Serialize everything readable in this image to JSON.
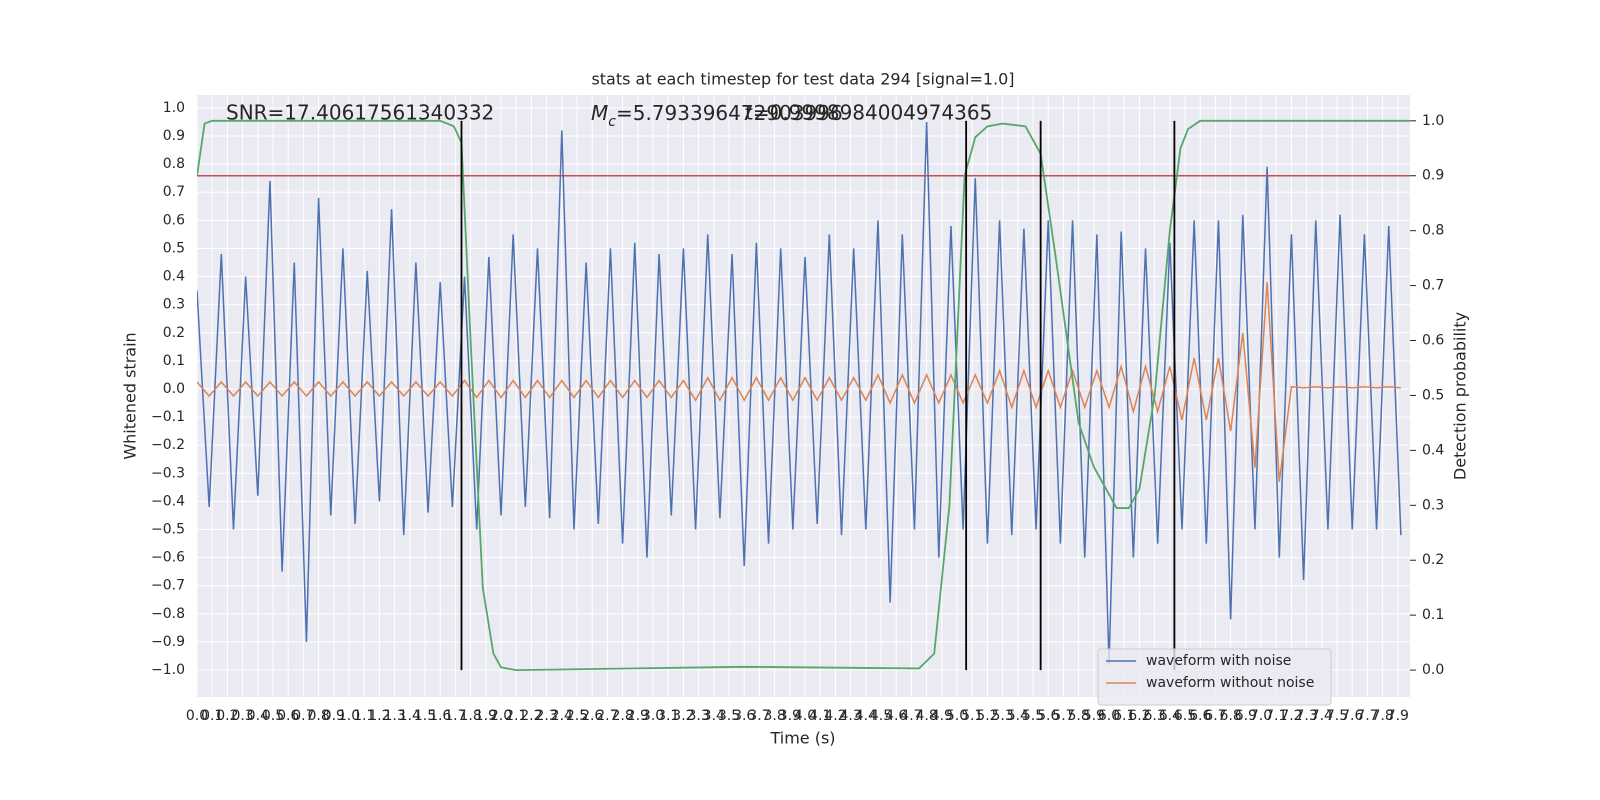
{
  "chart_data": {
    "type": "line",
    "title": "stats at each timestep for test data 294 [signal=1.0]",
    "xlabel": "Time (s)",
    "ylabel": "Whitened strain",
    "y2label": "Detection probability",
    "annotations": [
      {
        "text": "SNR=17.40617561340332"
      },
      {
        "symbol": "M",
        "subscript": "c",
        "text": "=5.793396472903996"
      },
      {
        "text": "t=0.9998984004974365"
      }
    ],
    "xlim": [
      0,
      7.98
    ],
    "ylim": [
      -1.096,
      1.046
    ],
    "y2lim": [
      -0.049,
      1.047
    ],
    "grid": true,
    "legend": "lower right",
    "x": [
      0.0,
      0.08,
      0.16,
      0.24,
      0.32,
      0.4,
      0.48,
      0.56,
      0.64,
      0.72,
      0.8,
      0.88,
      0.96,
      1.04,
      1.12,
      1.2,
      1.28,
      1.36,
      1.44,
      1.52,
      1.6,
      1.68,
      1.76,
      1.84,
      1.92,
      2.0,
      2.08,
      2.16,
      2.24,
      2.32,
      2.4,
      2.48,
      2.56,
      2.64,
      2.72,
      2.8,
      2.88,
      2.96,
      3.04,
      3.12,
      3.2,
      3.28,
      3.36,
      3.44,
      3.52,
      3.6,
      3.68,
      3.76,
      3.84,
      3.92,
      4.0,
      4.08,
      4.16,
      4.24,
      4.32,
      4.4,
      4.48,
      4.56,
      4.64,
      4.72,
      4.8,
      4.88,
      4.96,
      5.04,
      5.12,
      5.2,
      5.28,
      5.36,
      5.44,
      5.52,
      5.6,
      5.68,
      5.76,
      5.84,
      5.92,
      6.0,
      6.08,
      6.16,
      6.24,
      6.32,
      6.4,
      6.48,
      6.56,
      6.64,
      6.72,
      6.8,
      6.88,
      6.96,
      7.04,
      7.12,
      7.2,
      7.28,
      7.36,
      7.44,
      7.52,
      7.6,
      7.68,
      7.76,
      7.84,
      7.92
    ],
    "series": [
      {
        "name": "waveform with noise",
        "color": "#4c72b0",
        "values": [
          0.35,
          -0.42,
          0.48,
          -0.5,
          0.4,
          -0.38,
          0.74,
          -0.65,
          0.45,
          -0.9,
          0.68,
          -0.45,
          0.5,
          -0.48,
          0.42,
          -0.4,
          0.64,
          -0.52,
          0.45,
          -0.44,
          0.38,
          -0.42,
          0.4,
          -0.5,
          0.47,
          -0.45,
          0.55,
          -0.42,
          0.5,
          -0.46,
          0.92,
          -0.5,
          0.45,
          -0.48,
          0.5,
          -0.55,
          0.52,
          -0.6,
          0.48,
          -0.45,
          0.5,
          -0.5,
          0.55,
          -0.46,
          0.48,
          -0.63,
          0.52,
          -0.55,
          0.5,
          -0.5,
          0.47,
          -0.48,
          0.55,
          -0.52,
          0.5,
          -0.5,
          0.6,
          -0.76,
          0.55,
          -0.5,
          0.95,
          -0.6,
          0.58,
          -0.5,
          0.75,
          -0.55,
          0.6,
          -0.52,
          0.57,
          -0.5,
          0.6,
          -0.55,
          0.6,
          -0.6,
          0.55,
          -0.98,
          0.56,
          -0.6,
          0.5,
          -0.55,
          0.52,
          -0.5,
          0.6,
          -0.55,
          0.6,
          -0.82,
          0.62,
          -0.5,
          0.79,
          -0.6,
          0.55,
          -0.68,
          0.6,
          -0.5,
          0.62,
          -0.5,
          0.55,
          -0.5,
          0.58,
          -0.52
        ]
      },
      {
        "name": "waveform without noise",
        "color": "#dd8452",
        "values": [
          0.025,
          -0.025,
          0.025,
          -0.025,
          0.025,
          -0.025,
          0.025,
          -0.025,
          0.025,
          -0.025,
          0.025,
          -0.025,
          0.025,
          -0.025,
          0.025,
          -0.025,
          0.025,
          -0.025,
          0.025,
          -0.025,
          0.025,
          -0.025,
          0.03,
          -0.03,
          0.03,
          -0.03,
          0.03,
          -0.03,
          0.03,
          -0.03,
          0.03,
          -0.03,
          0.03,
          -0.03,
          0.03,
          -0.03,
          0.03,
          -0.03,
          0.03,
          -0.03,
          0.03,
          -0.04,
          0.04,
          -0.04,
          0.04,
          -0.04,
          0.04,
          -0.04,
          0.04,
          -0.04,
          0.04,
          -0.04,
          0.04,
          -0.04,
          0.04,
          -0.04,
          0.05,
          -0.05,
          0.05,
          -0.05,
          0.05,
          -0.05,
          0.05,
          -0.05,
          0.05,
          -0.05,
          0.065,
          -0.065,
          0.065,
          -0.065,
          0.065,
          -0.065,
          0.065,
          -0.065,
          0.065,
          -0.065,
          0.08,
          -0.08,
          0.08,
          -0.08,
          0.08,
          -0.11,
          0.11,
          -0.11,
          0.11,
          -0.15,
          0.2,
          -0.28,
          0.38,
          -0.33,
          0.008,
          0.004,
          0.008,
          0.004,
          0.008,
          0.004,
          0.008,
          0.004,
          0.008,
          0.004
        ]
      }
    ],
    "probability": {
      "color": "#55a868",
      "x": [
        0,
        0.05,
        0.1,
        1.6,
        1.69,
        1.74,
        1.8,
        1.88,
        1.95,
        2.0,
        2.1,
        3.6,
        4.75,
        4.85,
        4.95,
        5.05,
        5.12,
        5.2,
        5.3,
        5.45,
        5.55,
        5.65,
        5.8,
        5.9,
        6.0,
        6.05,
        6.13,
        6.2,
        6.3,
        6.4,
        6.47,
        6.52,
        6.6,
        7.98
      ],
      "values": [
        0.9,
        0.995,
        1.0,
        1.0,
        0.99,
        0.96,
        0.6,
        0.15,
        0.03,
        0.005,
        0,
        0.006,
        0.003,
        0.03,
        0.3,
        0.9,
        0.97,
        0.99,
        0.995,
        0.99,
        0.94,
        0.75,
        0.45,
        0.37,
        0.32,
        0.295,
        0.295,
        0.33,
        0.5,
        0.8,
        0.95,
        0.985,
        1.0,
        1.0
      ]
    },
    "threshold": {
      "value": 0.9,
      "color": "#c44e52"
    },
    "vlines": {
      "color": "#000000",
      "x": [
        1.74,
        5.06,
        5.55,
        6.43
      ],
      "ylim": [
        0,
        1
      ]
    },
    "xticks": [
      {
        "value": 0,
        "label": "0.0"
      },
      0.1,
      0.2,
      0.3,
      0.4,
      0.5,
      0.6,
      0.7,
      0.8,
      0.9,
      {
        "value": 1,
        "label": "1.0"
      },
      1.1,
      1.2,
      1.3,
      1.4,
      1.5,
      1.6,
      1.7,
      1.8,
      1.9,
      {
        "value": 2,
        "label": "2.0"
      },
      2.1,
      2.2,
      2.3,
      2.4,
      2.5,
      2.6,
      2.7,
      2.8,
      2.9,
      {
        "value": 3,
        "label": "3.0"
      },
      3.1,
      3.2,
      3.3,
      3.4,
      3.5,
      3.6,
      3.7,
      3.8,
      3.9,
      {
        "value": 4,
        "label": "4.0"
      },
      4.1,
      4.2,
      4.3,
      4.4,
      4.5,
      4.6,
      4.7,
      4.8,
      4.9,
      {
        "value": 5,
        "label": "5.0"
      },
      5.1,
      5.2,
      5.3,
      5.4,
      5.5,
      5.6,
      5.7,
      5.8,
      5.9,
      {
        "value": 6,
        "label": "6.0"
      },
      6.1,
      6.2,
      6.3,
      6.4,
      6.5,
      6.6,
      6.7,
      6.8,
      6.9,
      {
        "value": 7,
        "label": "7.0"
      },
      7.1,
      7.2,
      7.3,
      7.4,
      7.5,
      7.6,
      7.7,
      7.8,
      7.9
    ],
    "yticks": [
      {
        "value": -1,
        "label": "−1.0"
      },
      {
        "value": -0.9,
        "label": "−0.9"
      },
      {
        "value": -0.8,
        "label": "−0.8"
      },
      {
        "value": -0.7,
        "label": "−0.7"
      },
      {
        "value": -0.6,
        "label": "−0.6"
      },
      {
        "value": -0.5,
        "label": "−0.5"
      },
      {
        "value": -0.4,
        "label": "−0.4"
      },
      {
        "value": -0.3,
        "label": "−0.3"
      },
      {
        "value": -0.2,
        "label": "−0.2"
      },
      {
        "value": -0.1,
        "label": "−0.1"
      },
      {
        "value": 0,
        "label": "0.0"
      },
      0.1,
      0.2,
      0.3,
      0.4,
      0.5,
      0.6,
      0.7,
      0.8,
      0.9,
      {
        "value": 1,
        "label": "1.0"
      }
    ],
    "y2ticks": [
      {
        "value": 0,
        "label": "0.0"
      },
      0.1,
      0.2,
      0.3,
      0.4,
      0.5,
      0.6,
      0.7,
      0.8,
      0.9,
      {
        "value": 1,
        "label": "1.0"
      }
    ]
  }
}
